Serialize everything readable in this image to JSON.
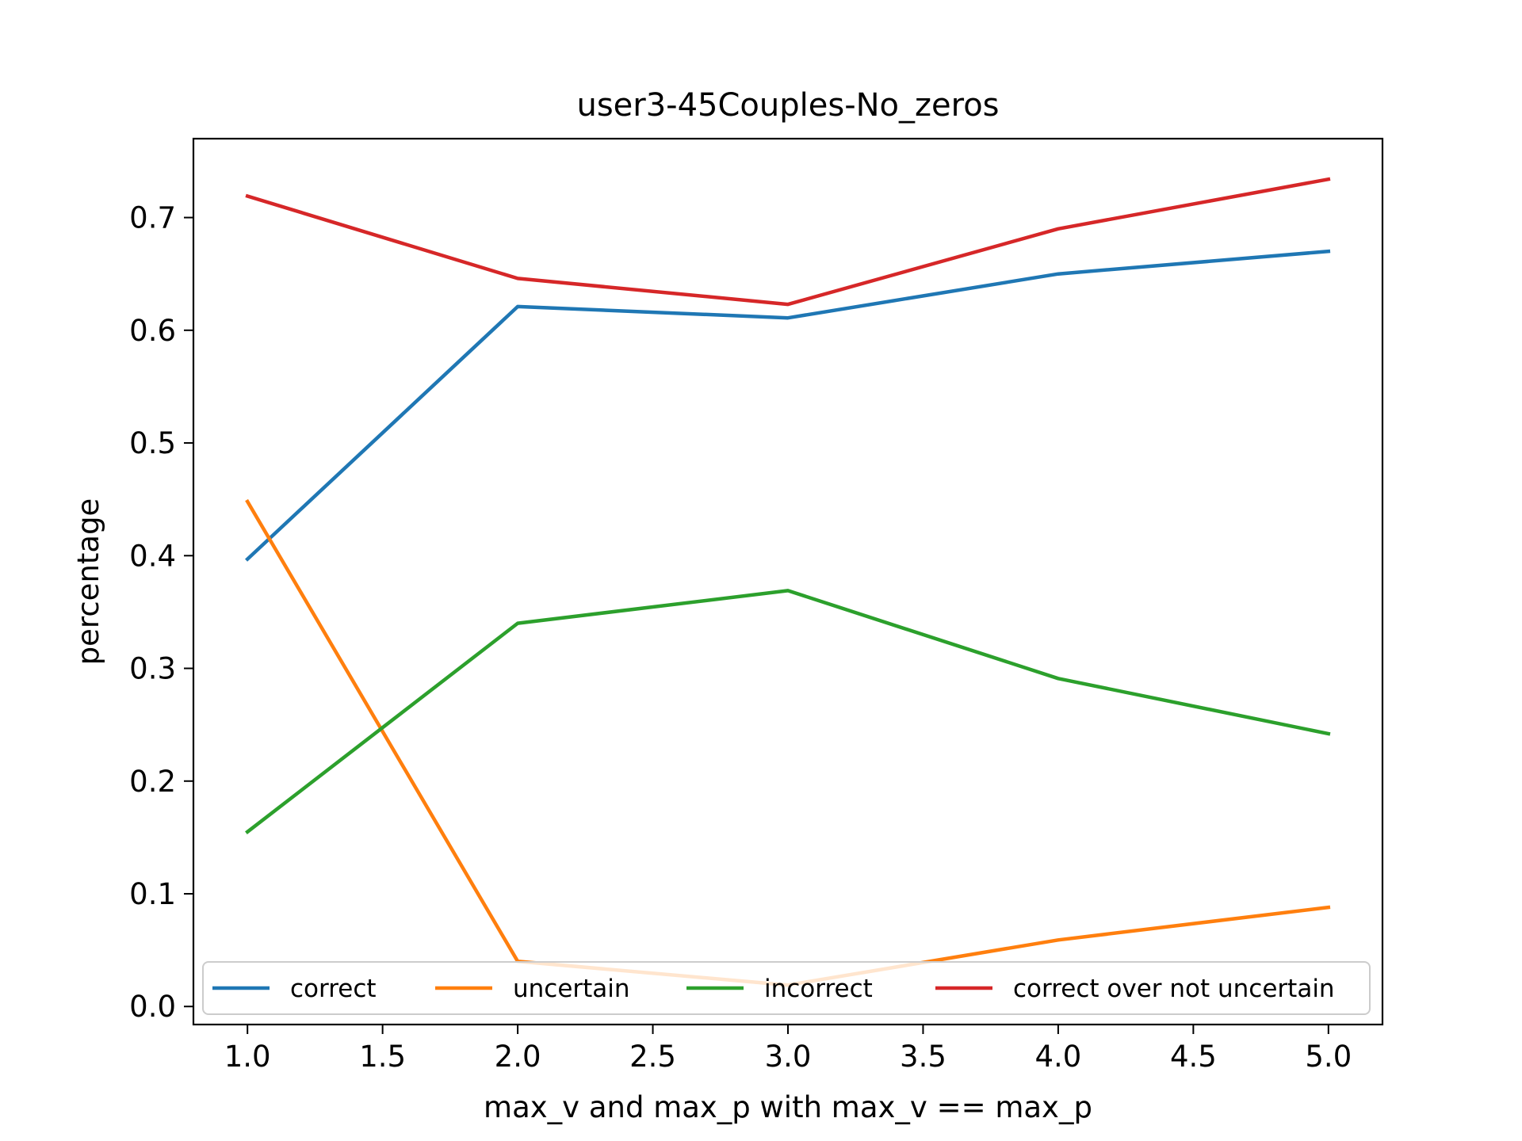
{
  "chart_data": {
    "type": "line",
    "title": "user3-45Couples-No_zeros",
    "xlabel": "max_v and max_p with max_v == max_p",
    "ylabel": "percentage",
    "xlim": [
      0.8,
      5.2
    ],
    "ylim": [
      -0.016,
      0.77
    ],
    "xticks": [
      1.0,
      1.5,
      2.0,
      2.5,
      3.0,
      3.5,
      4.0,
      4.5,
      5.0
    ],
    "xtick_labels": [
      "1.0",
      "1.5",
      "2.0",
      "2.5",
      "3.0",
      "3.5",
      "4.0",
      "4.5",
      "5.0"
    ],
    "yticks": [
      0.0,
      0.1,
      0.2,
      0.3,
      0.4,
      0.5,
      0.6,
      0.7
    ],
    "ytick_labels": [
      "0.0",
      "0.1",
      "0.2",
      "0.3",
      "0.4",
      "0.5",
      "0.6",
      "0.7"
    ],
    "grid": false,
    "legend_position": "bottom, single row",
    "x": [
      1.0,
      2.0,
      3.0,
      4.0,
      5.0
    ],
    "series": [
      {
        "name": "correct",
        "color": "#1f77b4",
        "values": [
          0.397,
          0.621,
          0.611,
          0.65,
          0.67
        ]
      },
      {
        "name": "uncertain",
        "color": "#ff7f0e",
        "values": [
          0.448,
          0.04,
          0.019,
          0.059,
          0.088
        ]
      },
      {
        "name": "incorrect",
        "color": "#2ca02c",
        "values": [
          0.155,
          0.34,
          0.369,
          0.291,
          0.242
        ]
      },
      {
        "name": "correct over not uncertain",
        "color": "#d62728",
        "values": [
          0.719,
          0.646,
          0.623,
          0.69,
          0.734
        ]
      }
    ]
  }
}
